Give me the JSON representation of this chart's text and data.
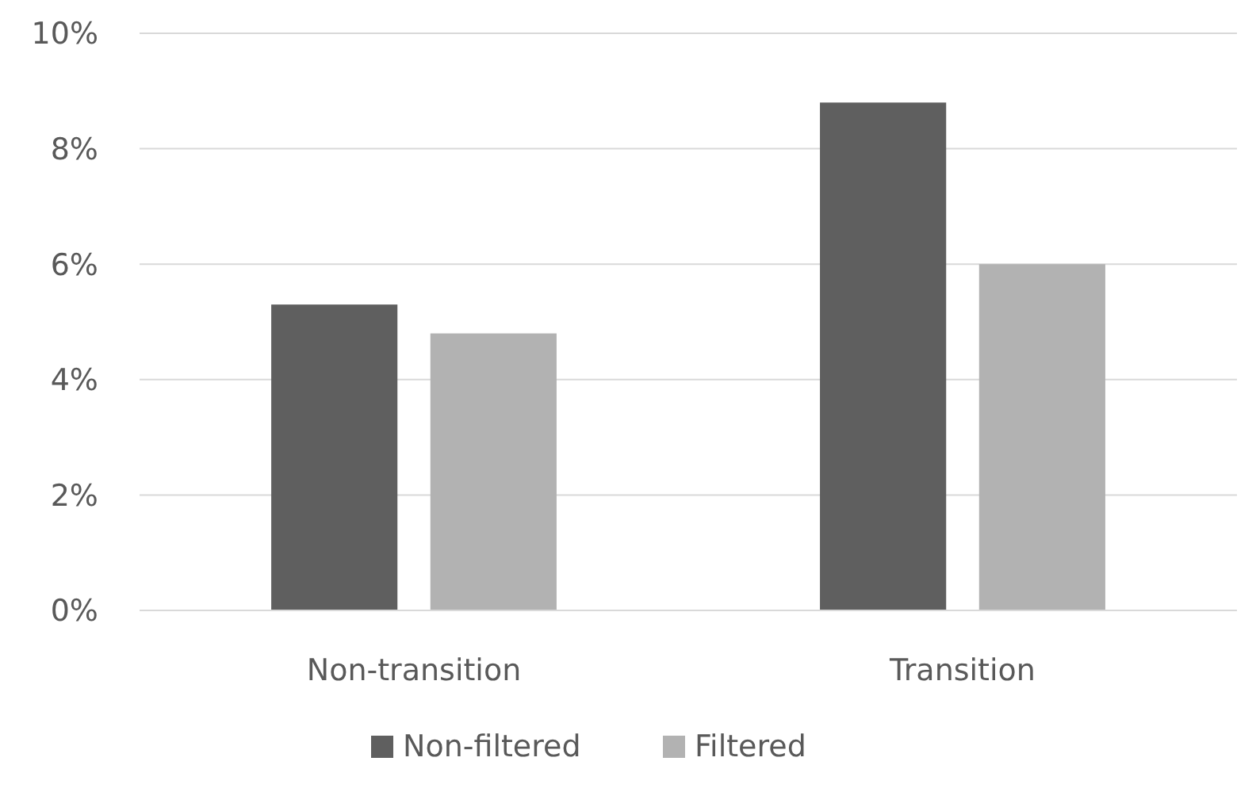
{
  "chart_data": {
    "type": "bar",
    "categories": [
      "Non-transition",
      "Transition"
    ],
    "series": [
      {
        "name": "Non-filtered",
        "color": "#5f5f5f",
        "values": [
          5.3,
          8.8
        ]
      },
      {
        "name": "Filtered",
        "color": "#b2b2b2",
        "values": [
          4.8,
          6.0
        ]
      }
    ],
    "ylim": [
      0,
      10
    ],
    "yticks": [
      {
        "value": 0,
        "label": "0%"
      },
      {
        "value": 2,
        "label": "2%"
      },
      {
        "value": 4,
        "label": "4%"
      },
      {
        "value": 6,
        "label": "6%"
      },
      {
        "value": 8,
        "label": "8%"
      },
      {
        "value": 10,
        "label": "10%"
      }
    ],
    "grid": "y",
    "legend": "bottom"
  }
}
